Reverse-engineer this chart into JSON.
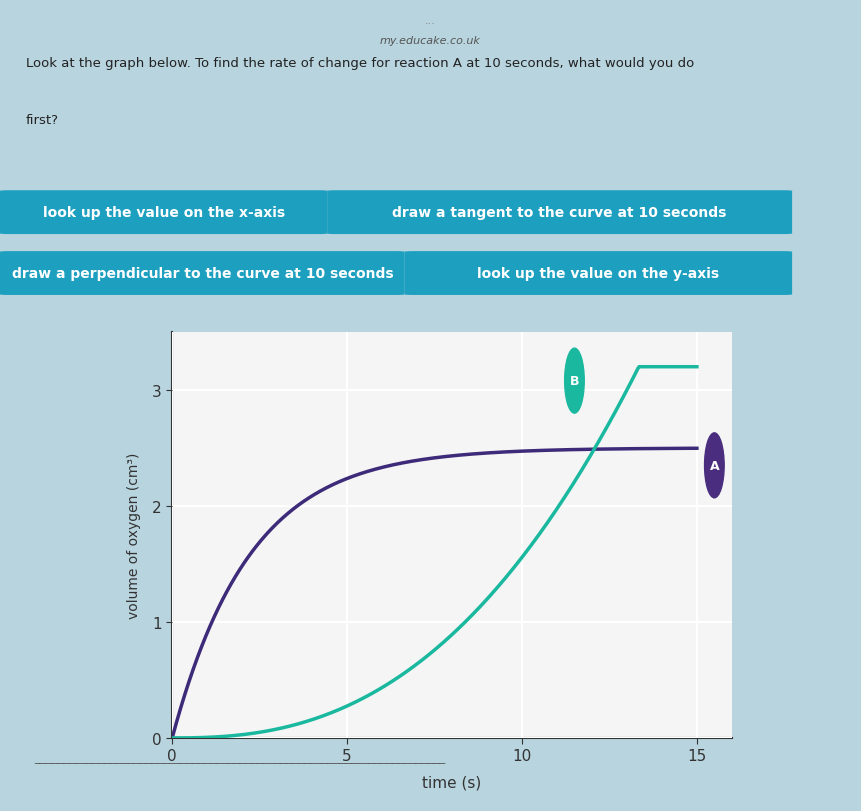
{
  "title_text": "my.educake.co.uk",
  "dots_text": "...",
  "question_line1": "Look at the graph below. To find the rate of change for reaction A at 10 seconds, what would you do",
  "question_line2": "first?",
  "options": [
    "look up the value on the x-axis",
    "draw a tangent to the curve at 10 seconds",
    "draw a perpendicular to the curve at 10 seconds",
    "look up the value on the y-axis"
  ],
  "option_bg_color": "#1d9fc0",
  "option_text_color": "#ffffff",
  "header_bg_color": "#ffffff",
  "page_bg_color": "#b8d4de",
  "graph_bg_color": "#f5f5f5",
  "curve_A_color": "#3d2b7a",
  "curve_B_color": "#1ab89e",
  "label_A_bg": "#4a2d7f",
  "label_B_bg": "#1ab89e",
  "label_text_color": "#ffffff",
  "xlabel": "time (s)",
  "ylabel": "volume of oxygen (cm³)",
  "xlim": [
    0,
    16
  ],
  "ylim": [
    0,
    3.5
  ],
  "xticks": [
    0,
    5,
    10,
    15
  ],
  "yticks": [
    0,
    1,
    2,
    3
  ],
  "top_bg": "#1a1a2e",
  "dark_strip_color": "#2a2a3e"
}
